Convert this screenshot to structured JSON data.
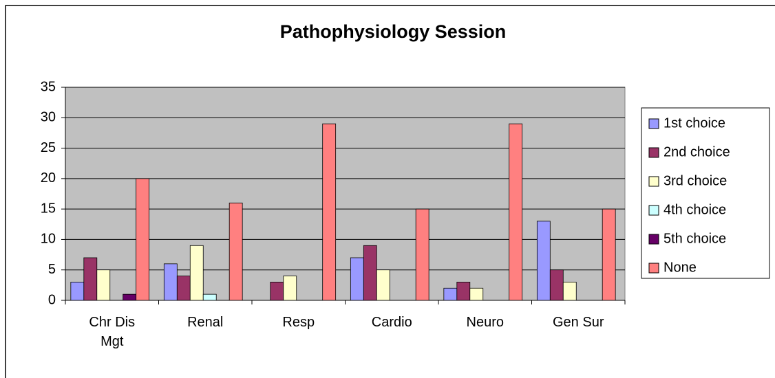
{
  "chart_data": {
    "type": "bar",
    "title": "Pathophysiology Session",
    "categories": [
      "Chr Dis Mgt",
      "Renal",
      "Resp",
      "Cardio",
      "Neuro",
      "Gen Sur"
    ],
    "series": [
      {
        "name": "1st choice",
        "color": "#9999ff",
        "values": [
          3,
          6,
          0,
          7,
          2,
          13
        ]
      },
      {
        "name": "2nd choice",
        "color": "#993366",
        "values": [
          7,
          4,
          3,
          9,
          3,
          5
        ]
      },
      {
        "name": "3rd choice",
        "color": "#ffffcc",
        "values": [
          5,
          9,
          4,
          5,
          2,
          3
        ]
      },
      {
        "name": "4th choice",
        "color": "#ccffff",
        "values": [
          0,
          1,
          0,
          0,
          0,
          0
        ]
      },
      {
        "name": "5th choice",
        "color": "#660066",
        "values": [
          1,
          0,
          0,
          0,
          0,
          0
        ]
      },
      {
        "name": "None",
        "color": "#ff8080",
        "values": [
          20,
          16,
          29,
          15,
          29,
          15
        ]
      }
    ],
    "ylim": [
      0,
      35
    ],
    "yticks": [
      0,
      5,
      10,
      15,
      20,
      25,
      30,
      35
    ],
    "grid": true,
    "legend": "right"
  }
}
